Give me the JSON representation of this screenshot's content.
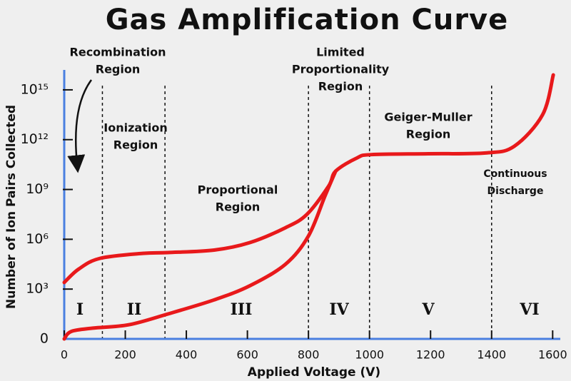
{
  "chart_data": {
    "type": "line",
    "title": "Gas Amplification Curve",
    "xlabel": "Applied Voltage (V)",
    "ylabel": "Number of Ion Pairs Collected",
    "xlim": [
      0,
      1625
    ],
    "ylim": [
      0,
      16.2
    ],
    "xticks": [
      0,
      200,
      400,
      600,
      800,
      1000,
      1200,
      1400,
      1600
    ],
    "yticks": [
      0,
      {
        "value": 3,
        "label": "10³"
      },
      {
        "value": 6,
        "label": "10⁶"
      },
      {
        "value": 9,
        "label": "10⁹"
      },
      {
        "value": 12,
        "label": "10¹²"
      },
      {
        "value": 15,
        "label": "10¹⁵"
      }
    ],
    "axis_color": "#4a7fe0",
    "series": [
      {
        "color": "#e8191b",
        "x": [
          0,
          47,
          117,
          257,
          339,
          491,
          608,
          725,
          795,
          866,
          889,
          959,
          1006,
          1193,
          1380,
          1474,
          1567,
          1602
        ],
        "values": [
          3.4,
          4.2,
          4.85,
          5.15,
          5.2,
          5.35,
          5.8,
          6.7,
          7.5,
          9.2,
          10.1,
          10.9,
          11.1,
          11.15,
          11.2,
          11.6,
          13.5,
          15.9
        ]
      },
      {
        "color": "#e8191b",
        "x": [
          0,
          23,
          94,
          211,
          339,
          491,
          608,
          725,
          800,
          854,
          889
        ],
        "values": [
          0,
          0.45,
          0.65,
          0.85,
          1.5,
          2.35,
          3.2,
          4.5,
          6.2,
          8.6,
          10.1
        ]
      }
    ],
    "region_boundaries": [
      125,
      330,
      800,
      1000,
      1400
    ],
    "regions": [
      "I",
      "II",
      "III",
      "IV",
      "V",
      "VI"
    ],
    "annotations": [
      [
        "Recombination",
        "Region"
      ],
      [
        "Ionization",
        "Region"
      ],
      [
        "Proportional",
        "Region"
      ],
      [
        "Limited",
        "Proportionality",
        "Region"
      ],
      [
        "Geiger-Muller",
        "Region"
      ],
      [
        "Continuous",
        "Discharge"
      ]
    ]
  }
}
